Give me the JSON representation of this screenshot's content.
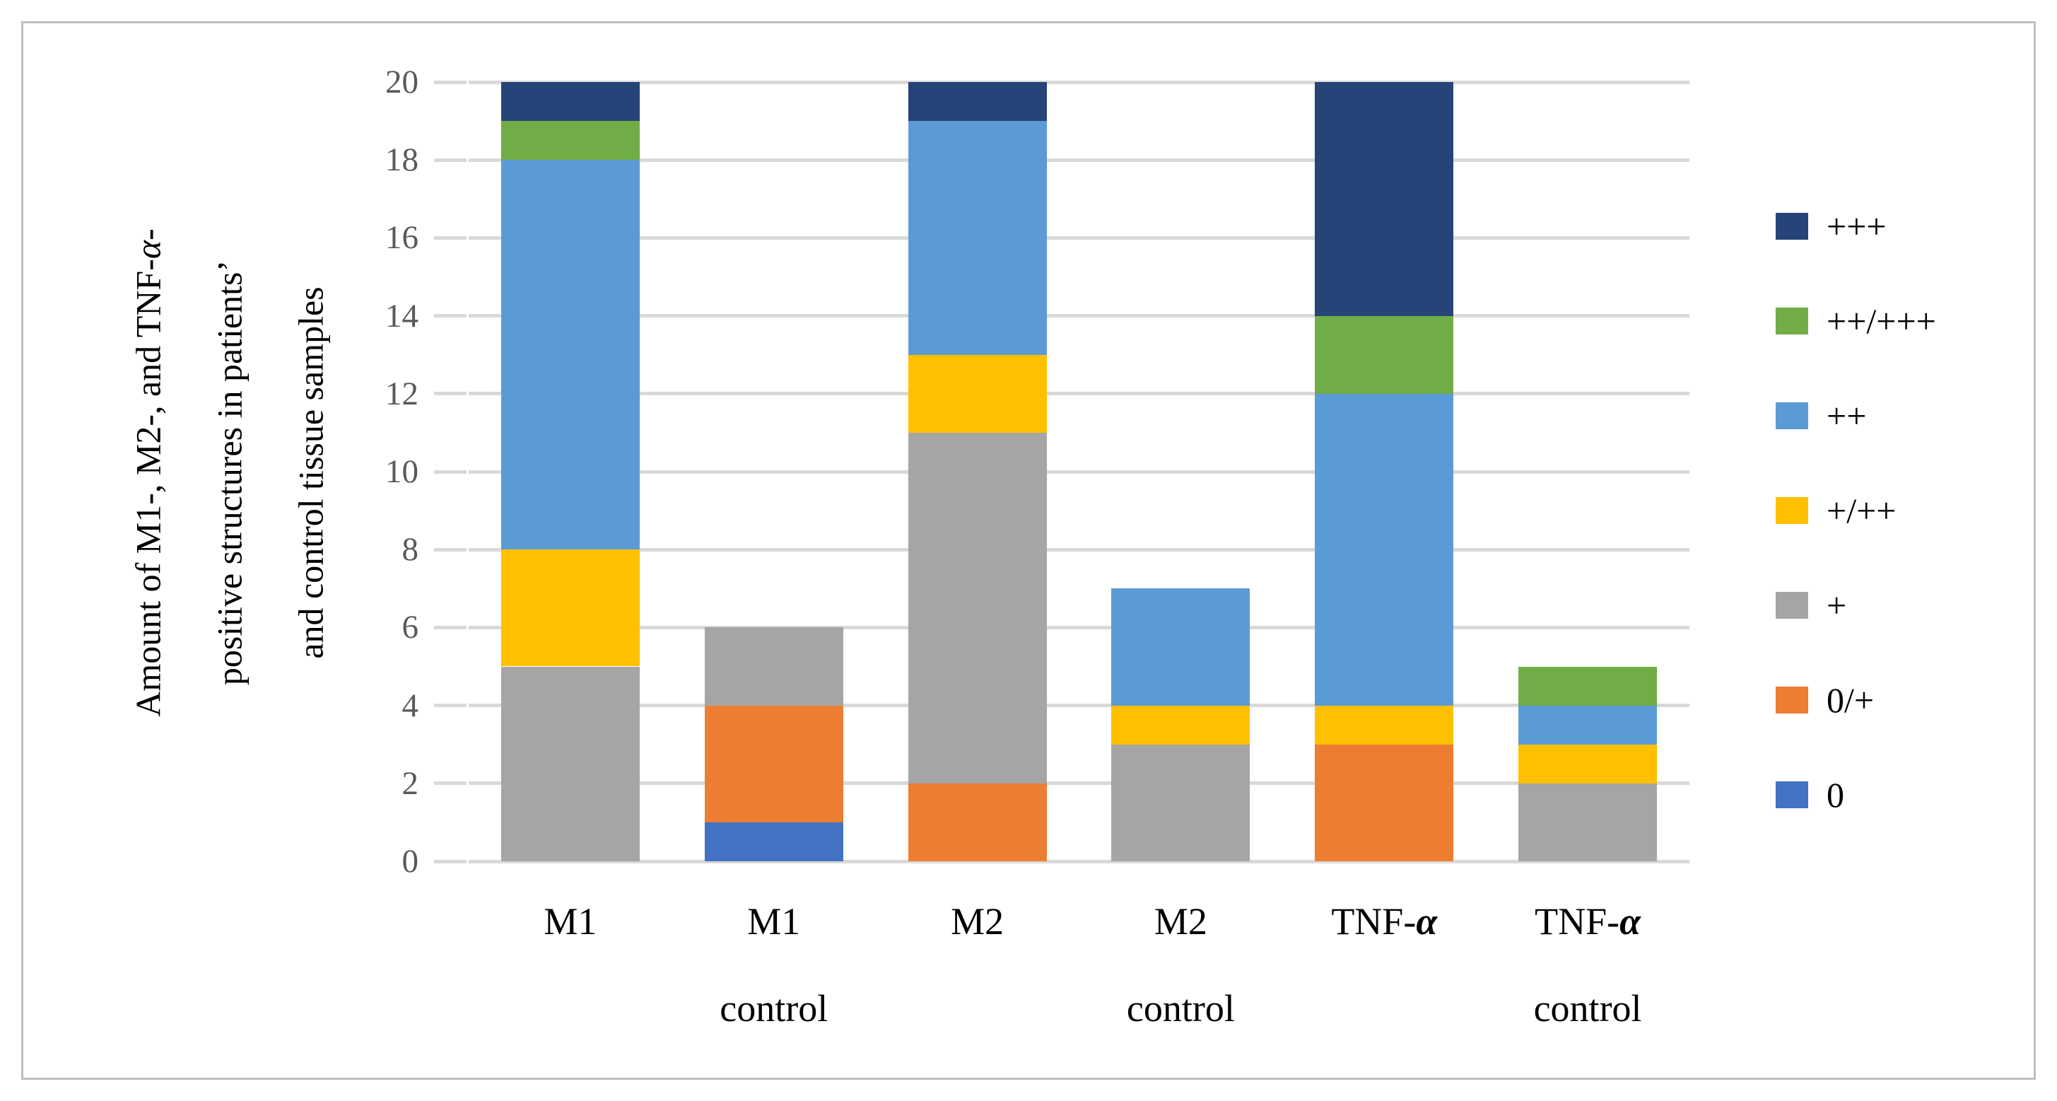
{
  "figure": {
    "background": "#FFFFFF",
    "border_color": "#BFBFBF"
  },
  "chart_data": {
    "type": "bar",
    "stacked": true,
    "ylabel": "Amount of M1-, M2-, and TNF-α-positive structures in patients’ and control tissue samples",
    "ylabel_lines": [
      "Amount of M1-, M2-, and TNF-α-",
      "positive structures in patients’",
      "and control tissue samples"
    ],
    "categories": [
      "M1",
      "M1 control",
      "M2",
      "M2 control",
      "TNF-α",
      "TNF-α control"
    ],
    "category_line1": [
      "M1",
      "M1",
      "M2",
      "M2",
      "TNF-α",
      "TNF-α"
    ],
    "category_line2": [
      "",
      "control",
      "",
      "control",
      "",
      "control"
    ],
    "ylim": [
      0,
      20
    ],
    "yticks": [
      0,
      2,
      4,
      6,
      8,
      10,
      12,
      14,
      16,
      18,
      20
    ],
    "grid": true,
    "legend_position": "right",
    "series": [
      {
        "name": "0",
        "color": "#4472C4",
        "values": [
          0,
          1,
          0,
          0,
          0,
          0
        ]
      },
      {
        "name": "0/+",
        "color": "#ED7D31",
        "values": [
          0,
          3,
          2,
          0,
          3,
          0
        ]
      },
      {
        "name": "+",
        "color": "#A5A5A5",
        "values": [
          5,
          2,
          9,
          3,
          0,
          2
        ]
      },
      {
        "name": "+/++",
        "color": "#FFC000",
        "values": [
          3,
          0,
          2,
          1,
          1,
          1
        ]
      },
      {
        "name": "++",
        "color": "#5B9BD5",
        "values": [
          10,
          0,
          6,
          3,
          8,
          1
        ]
      },
      {
        "name": "++/+++",
        "color": "#70AD47",
        "values": [
          1,
          0,
          0,
          0,
          2,
          1
        ]
      },
      {
        "name": "+++",
        "color": "#264478",
        "values": [
          1,
          0,
          1,
          0,
          6,
          0
        ]
      }
    ],
    "legend_order": [
      "+++",
      "++/+++",
      "++",
      "+/++",
      "+",
      "0/+",
      "0"
    ],
    "bar_totals": [
      20,
      6,
      20,
      7,
      20,
      5
    ],
    "gridline_color": "#D9D9D9",
    "tick_mark_color": "#D9D9D9",
    "tick_label_color": "#595959"
  }
}
